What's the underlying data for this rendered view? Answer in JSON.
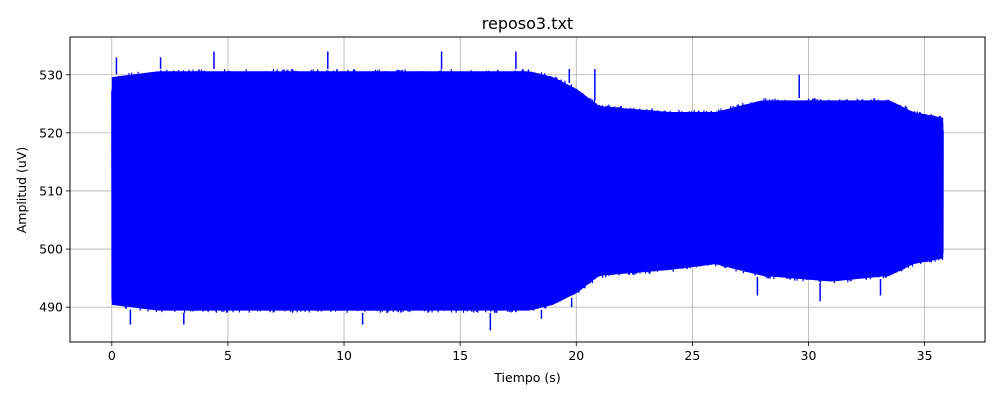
{
  "chart_data": {
    "type": "line",
    "title": "reposo3.txt",
    "xlabel": "Tiempo (s)",
    "ylabel": "Amplitud (uV)",
    "xlim": [
      -1.8,
      37.6
    ],
    "ylim": [
      484,
      536.5
    ],
    "xticks": [
      0,
      5,
      10,
      15,
      20,
      25,
      30,
      35
    ],
    "yticks": [
      490,
      500,
      510,
      520,
      530
    ],
    "grid": true,
    "series": [
      {
        "color": "#0000ff",
        "x_range": [
          0,
          35.8
        ],
        "envelope": [
          {
            "t": 0,
            "lo": 490,
            "hi": 530
          },
          {
            "t": 2,
            "lo": 489,
            "hi": 531
          },
          {
            "t": 5,
            "lo": 489,
            "hi": 531
          },
          {
            "t": 10,
            "lo": 489,
            "hi": 531
          },
          {
            "t": 15,
            "lo": 489,
            "hi": 531
          },
          {
            "t": 18,
            "lo": 489,
            "hi": 531
          },
          {
            "t": 19,
            "lo": 490,
            "hi": 530
          },
          {
            "t": 20,
            "lo": 492,
            "hi": 528
          },
          {
            "t": 21,
            "lo": 495,
            "hi": 525
          },
          {
            "t": 24,
            "lo": 496,
            "hi": 524
          },
          {
            "t": 26,
            "lo": 497,
            "hi": 524
          },
          {
            "t": 28,
            "lo": 495,
            "hi": 526
          },
          {
            "t": 31,
            "lo": 494,
            "hi": 526
          },
          {
            "t": 33.5,
            "lo": 495,
            "hi": 526
          },
          {
            "t": 34.5,
            "lo": 497,
            "hi": 524
          },
          {
            "t": 35.8,
            "lo": 498,
            "hi": 523
          }
        ],
        "extremes": [
          {
            "t": 0.2,
            "v": 533
          },
          {
            "t": 2.1,
            "v": 533
          },
          {
            "t": 4.4,
            "v": 534
          },
          {
            "t": 9.3,
            "v": 534
          },
          {
            "t": 14.2,
            "v": 534
          },
          {
            "t": 17.4,
            "v": 534
          },
          {
            "t": 19.7,
            "v": 531
          },
          {
            "t": 20.8,
            "v": 531
          },
          {
            "t": 29.6,
            "v": 530
          },
          {
            "t": 0.8,
            "v": 487
          },
          {
            "t": 3.1,
            "v": 487
          },
          {
            "t": 10.8,
            "v": 487
          },
          {
            "t": 16.3,
            "v": 486
          },
          {
            "t": 18.5,
            "v": 488
          },
          {
            "t": 19.8,
            "v": 490
          },
          {
            "t": 27.8,
            "v": 492
          },
          {
            "t": 30.5,
            "v": 491
          },
          {
            "t": 33.1,
            "v": 492
          }
        ]
      }
    ]
  }
}
